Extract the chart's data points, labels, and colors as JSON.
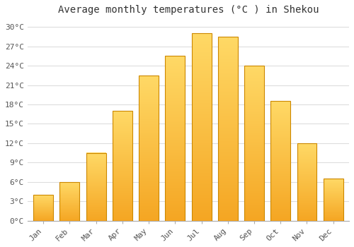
{
  "title": "Average monthly temperatures (°C ) in Shekou",
  "months": [
    "Jan",
    "Feb",
    "Mar",
    "Apr",
    "May",
    "Jun",
    "Jul",
    "Aug",
    "Sep",
    "Oct",
    "Nov",
    "Dec"
  ],
  "temperatures": [
    4.0,
    6.0,
    10.5,
    17.0,
    22.5,
    25.5,
    29.0,
    28.5,
    24.0,
    18.5,
    12.0,
    6.5
  ],
  "bar_color_bottom": "#F5A623",
  "bar_color_top": "#FFD966",
  "bar_edge_color": "#CC8800",
  "ylim": [
    0,
    31
  ],
  "yticks": [
    0,
    3,
    6,
    9,
    12,
    15,
    18,
    21,
    24,
    27,
    30
  ],
  "ytick_labels": [
    "0°C",
    "3°C",
    "6°C",
    "9°C",
    "12°C",
    "15°C",
    "18°C",
    "21°C",
    "24°C",
    "27°C",
    "30°C"
  ],
  "background_color": "#ffffff",
  "plot_bg_color": "#ffffff",
  "grid_color": "#dddddd",
  "title_fontsize": 10,
  "tick_fontsize": 8,
  "font_family": "monospace"
}
